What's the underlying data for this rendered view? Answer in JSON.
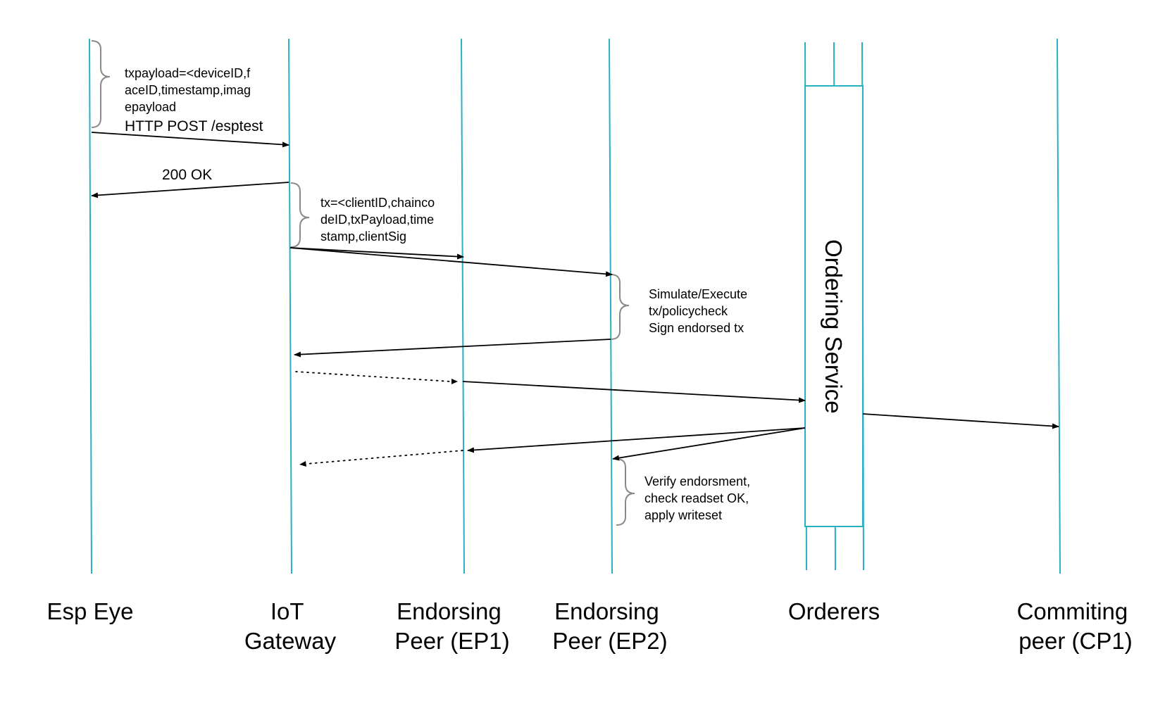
{
  "colors": {
    "lifeline": "#2ab0c6",
    "arrow": "#000000",
    "brace": "#8a8a8a"
  },
  "actors": {
    "esp_eye": [
      "Esp Eye"
    ],
    "iot_gateway": [
      "IoT",
      "Gateway"
    ],
    "ep1": [
      "Endorsing",
      "Peer (EP1)"
    ],
    "ep2": [
      "Endorsing",
      "Peer (EP2)"
    ],
    "orderers": [
      "Orderers"
    ],
    "cp1": [
      "Commiting",
      "peer (CP1)"
    ]
  },
  "ordering_service_label": "Ordering Service",
  "notes": {
    "txpayload": [
      "txpayload=<deviceID,f",
      "aceID,timestamp,imag",
      "epayload"
    ],
    "http_post": "HTTP POST /esptest",
    "ok_response": "200 OK",
    "tx": [
      "tx=<clientID,chainco",
      "deID,txPayload,time",
      "stamp,clientSig"
    ],
    "simulate": [
      "Simulate/Execute",
      "tx/policycheck",
      "Sign endorsed tx"
    ],
    "verify": [
      "Verify endorsment,",
      "check readset OK,",
      "apply writeset"
    ]
  }
}
